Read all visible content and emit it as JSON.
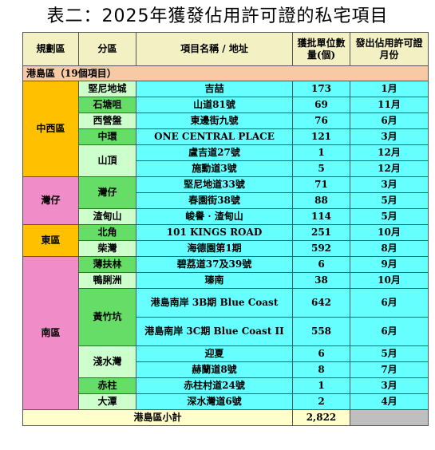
{
  "title": "表二：2025年獲發佔用許可證的私宅項目",
  "headers": {
    "region": "規劃區",
    "district": "分區",
    "project": "項目名稱 / 地址",
    "units": "獲批單位數量(個)",
    "month": "發出佔用許可證月份"
  },
  "section": "港島區（19個項目）",
  "regions": {
    "r1": "中西區",
    "r2": "灣仔",
    "r3": "東區",
    "r4": "南區"
  },
  "districts": {
    "d1": "堅尼地城",
    "d2": "石塘咀",
    "d3": "西營盤",
    "d4": "中環",
    "d5": "山頂",
    "d6": "灣仔",
    "d7": "渣甸山",
    "d8": "北角",
    "d9": "柴灣",
    "d10": "薄扶林",
    "d11": "鴨脷洲",
    "d12": "黃竹坑",
    "d13": "淺水灣",
    "d14": "赤柱",
    "d15": "大潭"
  },
  "rows": [
    {
      "project": "吉喆",
      "units": "173",
      "month": "1月"
    },
    {
      "project": "山道81號",
      "units": "69",
      "month": "11月"
    },
    {
      "project": "東邊街九號",
      "units": "76",
      "month": "6月"
    },
    {
      "project": "ONE CENTRAL PLACE",
      "units": "121",
      "month": "3月"
    },
    {
      "project": "盧吉道27號",
      "units": "1",
      "month": "12月"
    },
    {
      "project": "施勳道3號",
      "units": "5",
      "month": "12月"
    },
    {
      "project": "堅尼地道33號",
      "units": "71",
      "month": "3月"
    },
    {
      "project": "春園街38號",
      "units": "88",
      "month": "5月"
    },
    {
      "project": "峻譽 · 渣甸山",
      "units": "114",
      "month": "5月"
    },
    {
      "project": "101 KINGS ROAD",
      "units": "251",
      "month": "10月"
    },
    {
      "project": "海德園第1期",
      "units": "592",
      "month": "8月"
    },
    {
      "project": "碧荔道37及39號",
      "units": "6",
      "month": "9月"
    },
    {
      "project": "瑧南",
      "units": "38",
      "month": "10月"
    },
    {
      "project": "港島南岸 3B期 Blue Coast",
      "units": "642",
      "month": "6月"
    },
    {
      "project": "港島南岸 3C期 Blue Coast II",
      "units": "558",
      "month": "6月"
    },
    {
      "project": "迎夏",
      "units": "6",
      "month": "5月"
    },
    {
      "project": "赫蘭道8號",
      "units": "8",
      "month": "7月"
    },
    {
      "project": "赤柱村道24號",
      "units": "1",
      "month": "3月"
    },
    {
      "project": "深水灣道6號",
      "units": "2",
      "month": "4月"
    }
  ],
  "total": {
    "label": "港島區小計",
    "value": "2,822"
  }
}
